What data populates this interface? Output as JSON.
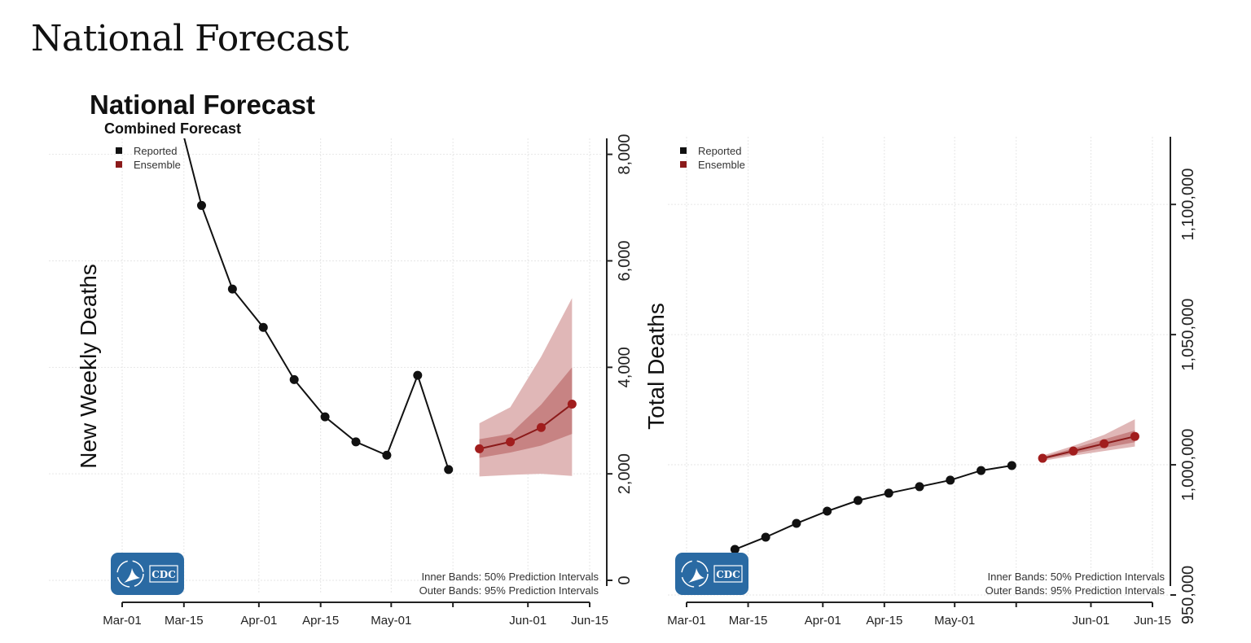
{
  "page_title": "National Forecast",
  "chart_data": [
    {
      "type": "line",
      "title": "National Forecast",
      "subtitle": "Combined Forecast",
      "ylabel": "New Weekly Deaths",
      "xlabel": "",
      "x_ticks": [
        "Mar-01",
        "Mar-15",
        "Apr-01",
        "Apr-15",
        "May-01",
        "",
        "Jun-01",
        "Jun-15"
      ],
      "x_tick_dates": [
        "2022-03-01",
        "2022-03-15",
        "2022-04-01",
        "2022-04-15",
        "2022-05-01",
        "2022-05-15",
        "2022-06-01",
        "2022-06-15"
      ],
      "y_ticks": [
        "0",
        "2,000",
        "4,000",
        "6,000",
        "8,000"
      ],
      "ylim": [
        0,
        8300
      ],
      "y_axis_side": "right",
      "grid": true,
      "legend": {
        "placement": "top-left",
        "items": [
          {
            "label": "Reported",
            "color": "#111111"
          },
          {
            "label": "Ensemble",
            "color": "#8b1a1a"
          }
        ]
      },
      "notes": [
        "Inner Bands: 50% Prediction Intervals",
        "Outer Bands: 95% Prediction Intervals"
      ],
      "logo": "CDC",
      "series": [
        {
          "name": "Reported",
          "color": "#111111",
          "x": [
            "2022-03-12",
            "2022-03-19",
            "2022-03-26",
            "2022-04-02",
            "2022-04-09",
            "2022-04-16",
            "2022-04-23",
            "2022-04-30",
            "2022-05-07",
            "2022-05-14"
          ],
          "y": [
            9300,
            7040,
            5470,
            4750,
            3770,
            3070,
            2600,
            2350,
            3850,
            2080
          ]
        },
        {
          "name": "Ensemble",
          "color": "#8b1a1a",
          "x": [
            "2022-05-21",
            "2022-05-28",
            "2022-06-04",
            "2022-06-11"
          ],
          "y": [
            2470,
            2600,
            2870,
            3310
          ],
          "pi50": [
            [
              2300,
              2650
            ],
            [
              2400,
              2750
            ],
            [
              2530,
              3300
            ],
            [
              2750,
              4000
            ]
          ],
          "pi95": [
            [
              1950,
              2950
            ],
            [
              1980,
              3250
            ],
            [
              2000,
              4200
            ],
            [
              1960,
              5300
            ]
          ]
        }
      ]
    },
    {
      "type": "line",
      "ylabel": "Total Deaths",
      "xlabel": "",
      "x_ticks": [
        "Mar-01",
        "Mar-15",
        "Apr-01",
        "Apr-15",
        "May-01",
        "",
        "Jun-01",
        "Jun-15"
      ],
      "x_tick_dates": [
        "2022-03-01",
        "2022-03-15",
        "2022-04-01",
        "2022-04-15",
        "2022-05-01",
        "2022-05-15",
        "2022-06-01",
        "2022-06-15"
      ],
      "y_ticks": [
        "950,000",
        "1,000,000",
        "1,050,000",
        "1,100,000"
      ],
      "ylim": [
        950000,
        1126000
      ],
      "y_axis_side": "right",
      "grid": true,
      "legend": {
        "placement": "top-left",
        "items": [
          {
            "label": "Reported",
            "color": "#111111"
          },
          {
            "label": "Ensemble",
            "color": "#8b1a1a"
          }
        ]
      },
      "notes": [
        "Inner Bands: 50% Prediction Intervals",
        "Outer Bands: 95% Prediction Intervals"
      ],
      "logo": "CDC",
      "series": [
        {
          "name": "Reported",
          "color": "#111111",
          "x": [
            "2022-03-12",
            "2022-03-19",
            "2022-03-26",
            "2022-04-02",
            "2022-04-09",
            "2022-04-16",
            "2022-04-23",
            "2022-04-30",
            "2022-05-07",
            "2022-05-14"
          ],
          "y": [
            967500,
            972200,
            977500,
            982200,
            986300,
            989100,
            991600,
            994100,
            997800,
            999700
          ]
        },
        {
          "name": "Ensemble",
          "color": "#8b1a1a",
          "x": [
            "2022-05-21",
            "2022-05-28",
            "2022-06-04",
            "2022-06-11"
          ],
          "y": [
            1002500,
            1005300,
            1008100,
            1010900
          ],
          "pi50": [
            [
              1002000,
              1003000
            ],
            [
              1004300,
              1006300
            ],
            [
              1006500,
              1009800
            ],
            [
              1008700,
              1013200
            ]
          ],
          "pi95": [
            [
              1001500,
              1003500
            ],
            [
              1003500,
              1007300
            ],
            [
              1005300,
              1011500
            ],
            [
              1007000,
              1017500
            ]
          ]
        }
      ]
    }
  ]
}
